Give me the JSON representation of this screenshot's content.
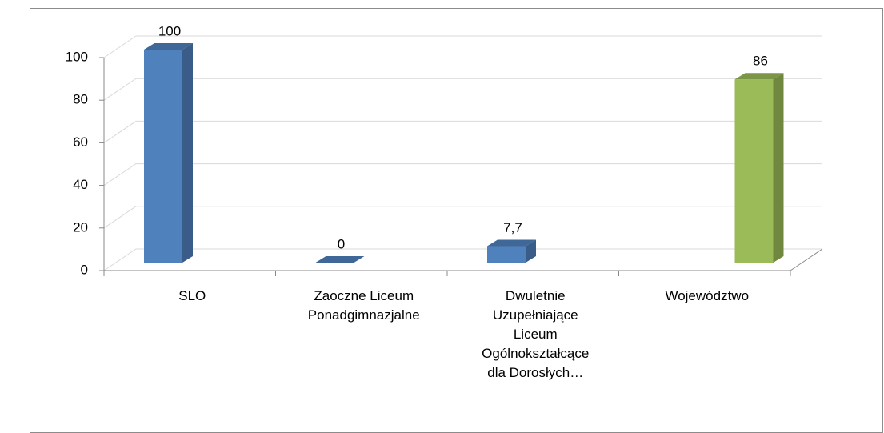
{
  "chart_data": {
    "type": "bar3d",
    "categories": [
      "SLO",
      "Zaoczne Liceum\nPonadgimnazjalne",
      "Dwuletnie\nUzupełniające\nLiceum\nOgólnokształcące\ndla Dorosłych…",
      "Województwo"
    ],
    "series": [
      {
        "color": "#4f81bd",
        "values": [
          100,
          0,
          7.7,
          null
        ],
        "value_labels": [
          "100",
          "0",
          "7,7",
          null
        ]
      },
      {
        "color": "#9bbb59",
        "values": [
          null,
          null,
          null,
          86
        ],
        "value_labels": [
          null,
          null,
          null,
          "86"
        ]
      }
    ],
    "ylim": [
      0,
      100
    ],
    "yticks": [
      0,
      20,
      40,
      60,
      80,
      100
    ],
    "grid": true
  }
}
